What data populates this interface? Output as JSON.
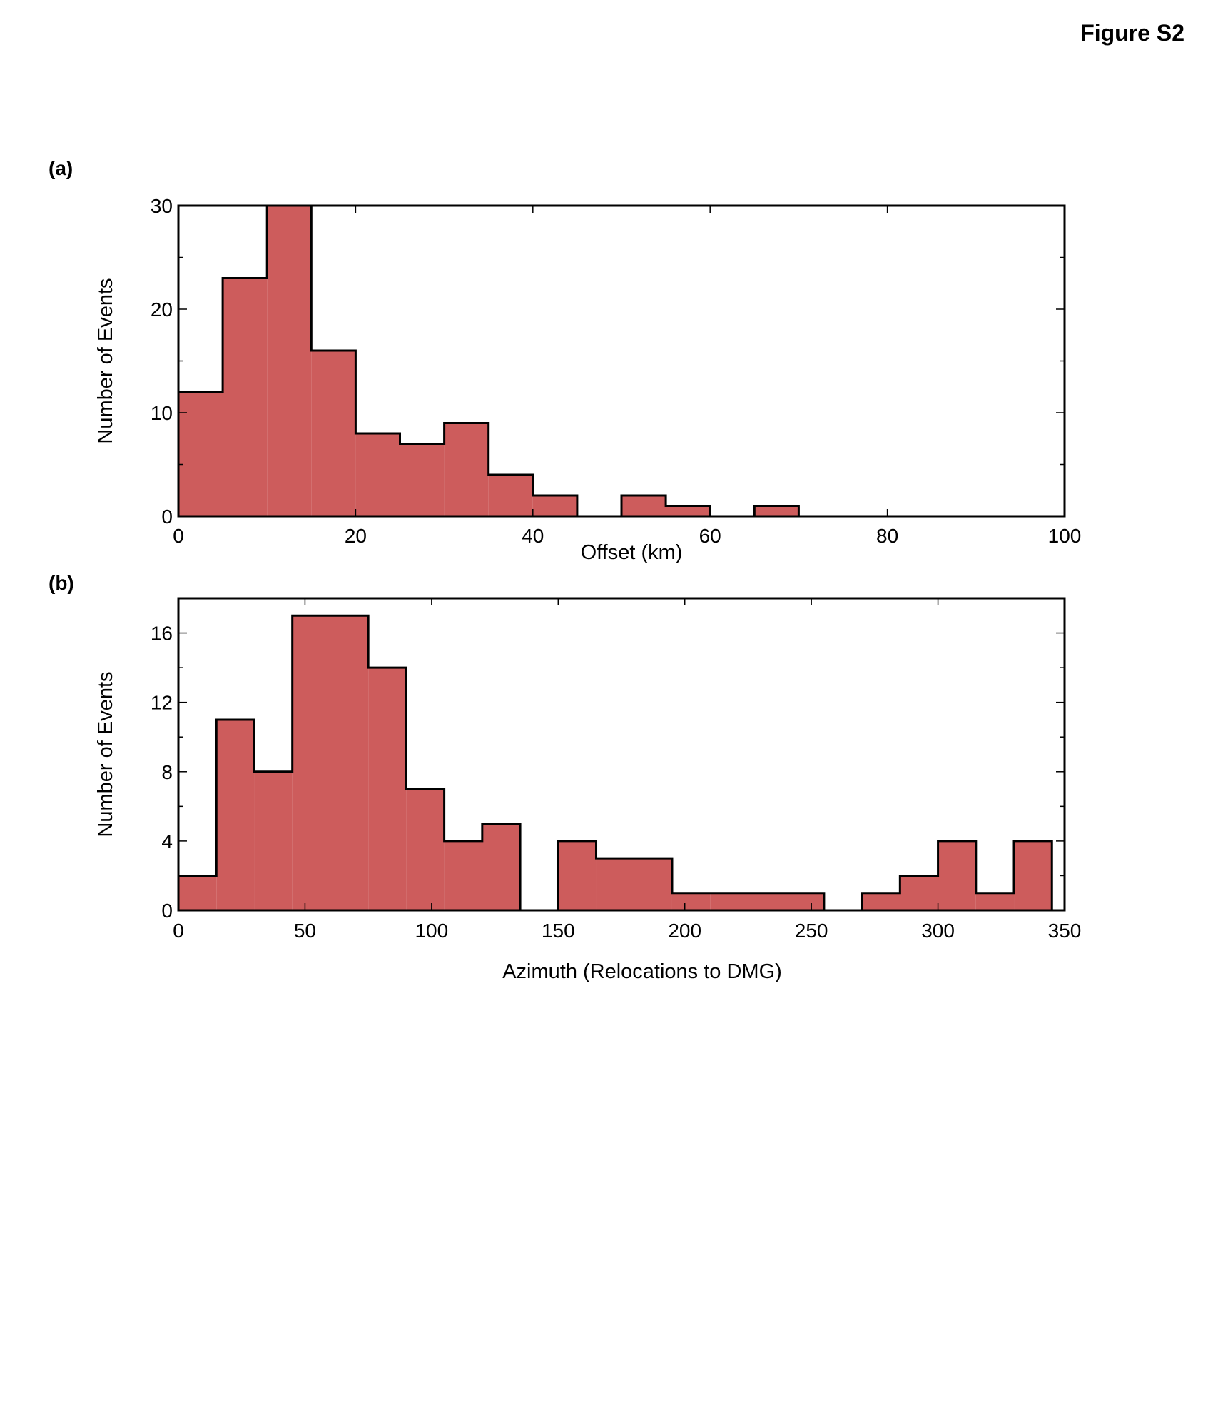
{
  "figure_label": "Figure S2",
  "chart_data": [
    {
      "type": "bar",
      "panel_label": "(a)",
      "title": "",
      "xlabel": "Offset (km)",
      "ylabel": "Number of Events",
      "xlim": [
        0,
        100
      ],
      "ylim": [
        0,
        30
      ],
      "bin_width": 5,
      "bin_edges_start": [
        0,
        5,
        10,
        15,
        20,
        25,
        30,
        35,
        40,
        45,
        50,
        55,
        60,
        65
      ],
      "values": [
        12,
        23,
        30,
        16,
        8,
        7,
        9,
        4,
        2,
        0,
        2,
        1,
        0,
        1
      ],
      "xticks": [
        0,
        20,
        40,
        60,
        80,
        100
      ],
      "yticks": [
        0,
        10,
        20,
        30
      ],
      "yminor": [
        5,
        15,
        25
      ],
      "fill_color": "#cd5c5c",
      "grid": false
    },
    {
      "type": "bar",
      "panel_label": "(b)",
      "title": "",
      "xlabel": "Azimuth (Relocations to DMG)",
      "ylabel": "Number of Events",
      "xlim": [
        0,
        350
      ],
      "ylim": [
        0,
        18
      ],
      "bin_width": 15,
      "bin_edges_start": [
        0,
        15,
        30,
        45,
        60,
        75,
        90,
        105,
        120,
        135,
        150,
        165,
        180,
        195,
        210,
        225,
        240,
        255,
        270,
        285,
        300,
        315,
        330
      ],
      "values": [
        2,
        11,
        8,
        17,
        17,
        14,
        7,
        4,
        5,
        0,
        4,
        3,
        3,
        1,
        1,
        1,
        1,
        0,
        1,
        2,
        4,
        1,
        4
      ],
      "xticks": [
        0,
        50,
        100,
        150,
        200,
        250,
        300,
        350
      ],
      "yticks": [
        0,
        4,
        8,
        12,
        16
      ],
      "yminor": [
        2,
        6,
        10,
        14,
        18
      ],
      "fill_color": "#cd5c5c",
      "grid": false
    }
  ]
}
